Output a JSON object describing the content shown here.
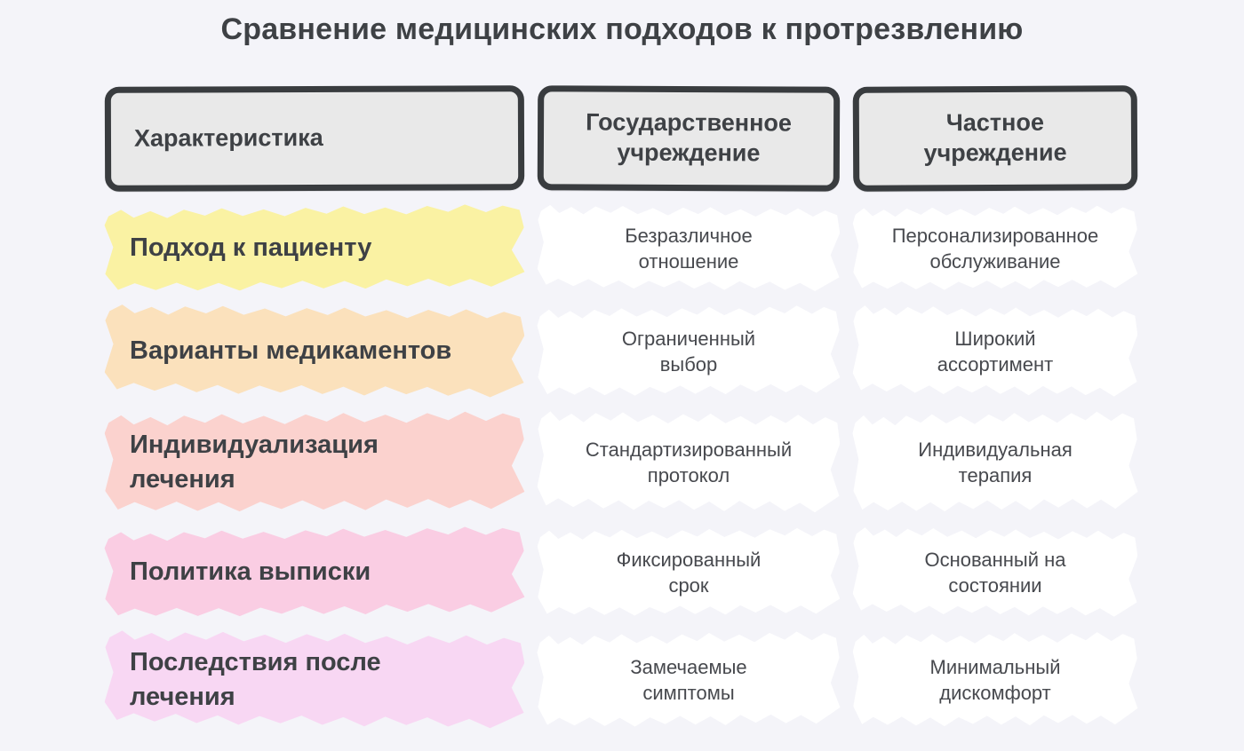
{
  "title": "Сравнение медицинских подходов к протрезвлению",
  "table": {
    "headers": [
      {
        "label": "Характеристика"
      },
      {
        "label": "Государственное\nучреждение"
      },
      {
        "label": "Частное\nучреждение"
      }
    ],
    "rows": [
      {
        "feature": "Подход к пациенту",
        "state": "Безразличное\nотношение",
        "private": "Персонализированное\nобслуживание",
        "highlight_color": "#FAF2A3"
      },
      {
        "feature": "Варианты медикаментов",
        "state": "Ограниченный\nвыбор",
        "private": "Широкий\nассортимент",
        "highlight_color": "#FBE1BC"
      },
      {
        "feature": "Индивидуализация\nлечения",
        "state": "Стандартизированный\nпротокол",
        "private": "Индивидуальная\nтерапия",
        "highlight_color": "#FBD2CE"
      },
      {
        "feature": "Политика выписки",
        "state": "Фиксированный\nсрок",
        "private": "Основанный на\nсостоянии",
        "highlight_color": "#FACDE3"
      },
      {
        "feature": "Последствия после\nлечения",
        "state": "Замечаемые\nсимптомы",
        "private": "Минимальный\nдискомфорт",
        "highlight_color": "#F8D7F3"
      }
    ]
  },
  "colors": {
    "background": "#F4F4F9",
    "header_fill": "#E9E9E9",
    "header_border": "#393C3F",
    "title_text": "#3E4145",
    "cell_text": "#47494E",
    "value_cell_fill": "#FFFFFF"
  }
}
